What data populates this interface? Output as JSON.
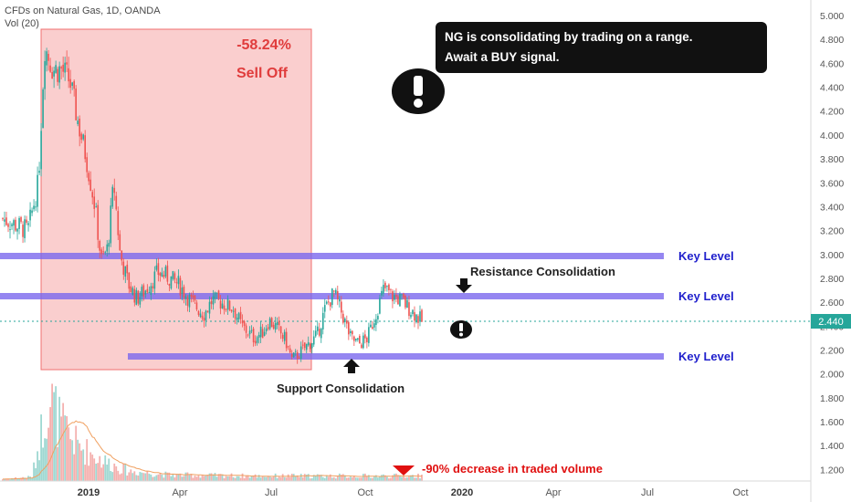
{
  "header": {
    "title": "CFDs on Natural Gas, 1D, OANDA",
    "vol_label": "Vol (20)"
  },
  "note": {
    "line1": "NG is consolidating by trading on a range.",
    "line2": "Await a BUY signal."
  },
  "sell_off": {
    "percent": "-58.24%",
    "label": "Sell Off"
  },
  "labels": {
    "resistance": "Resistance Consolidation",
    "support": "Support Consolidation",
    "volume_note": "-90% decrease in traded volume",
    "price_tag": "2.440"
  },
  "colors": {
    "up_candle": "#26a69a",
    "down_candle": "#ef5350",
    "key_level": "#7b68ee",
    "key_text": "#1f1fcc",
    "selloff_fill": "#f6a5a5",
    "selloff_text": "#e03c3c",
    "price_tag": "#26a69a",
    "volume_note": "#e01010"
  },
  "chart_data": {
    "type": "candlestick",
    "symbol": "Natural Gas CFD",
    "timeframe": "1D",
    "x_ticks": [
      "2019",
      "Apr",
      "Jul",
      "Oct",
      "2020",
      "Apr",
      "Jul",
      "Oct"
    ],
    "y_ticks": [
      "5.000",
      "4.800",
      "4.600",
      "4.400",
      "4.200",
      "4.000",
      "3.800",
      "3.600",
      "3.400",
      "3.200",
      "3.000",
      "2.800",
      "2.600",
      "2.400",
      "2.200",
      "2.000",
      "1.800",
      "1.600",
      "1.400",
      "1.200"
    ],
    "ylim": [
      1.1,
      5.08
    ],
    "last_price": 2.44,
    "key_levels": [
      {
        "label": "Key Level",
        "value": 2.995
      },
      {
        "label": "Key Level",
        "value": 2.66
      },
      {
        "label": "Key Level",
        "value": 2.15
      }
    ],
    "close_path": [
      {
        "t": 0,
        "close": 3.3
      },
      {
        "t": 0.03,
        "close": 3.25
      },
      {
        "t": 0.06,
        "close": 3.2
      },
      {
        "t": 0.085,
        "close": 3.6
      },
      {
        "t": 0.1,
        "close": 4.75
      },
      {
        "t": 0.12,
        "close": 4.55
      },
      {
        "t": 0.14,
        "close": 4.55
      },
      {
        "t": 0.16,
        "close": 4.45
      },
      {
        "t": 0.18,
        "close": 4.1
      },
      {
        "t": 0.2,
        "close": 3.8
      },
      {
        "t": 0.22,
        "close": 3.4
      },
      {
        "t": 0.235,
        "close": 2.95
      },
      {
        "t": 0.25,
        "close": 3.05
      },
      {
        "t": 0.265,
        "close": 3.6
      },
      {
        "t": 0.28,
        "close": 3.0
      },
      {
        "t": 0.3,
        "close": 2.75
      },
      {
        "t": 0.32,
        "close": 2.63
      },
      {
        "t": 0.34,
        "close": 2.7
      },
      {
        "t": 0.37,
        "close": 2.85
      },
      {
        "t": 0.39,
        "close": 2.82
      },
      {
        "t": 0.42,
        "close": 2.75
      },
      {
        "t": 0.45,
        "close": 2.6
      },
      {
        "t": 0.48,
        "close": 2.5
      },
      {
        "t": 0.5,
        "close": 2.62
      },
      {
        "t": 0.52,
        "close": 2.6
      },
      {
        "t": 0.55,
        "close": 2.55
      },
      {
        "t": 0.57,
        "close": 2.4
      },
      {
        "t": 0.6,
        "close": 2.3
      },
      {
        "t": 0.62,
        "close": 2.35
      },
      {
        "t": 0.635,
        "close": 2.45
      },
      {
        "t": 0.655,
        "close": 2.38
      },
      {
        "t": 0.675,
        "close": 2.28
      },
      {
        "t": 0.69,
        "close": 2.12
      },
      {
        "t": 0.71,
        "close": 2.18
      },
      {
        "t": 0.73,
        "close": 2.25
      },
      {
        "t": 0.75,
        "close": 2.32
      },
      {
        "t": 0.77,
        "close": 2.55
      },
      {
        "t": 0.79,
        "close": 2.68
      },
      {
        "t": 0.81,
        "close": 2.5
      },
      {
        "t": 0.83,
        "close": 2.3
      },
      {
        "t": 0.85,
        "close": 2.25
      },
      {
        "t": 0.87,
        "close": 2.3
      },
      {
        "t": 0.89,
        "close": 2.5
      },
      {
        "t": 0.91,
        "close": 2.72
      },
      {
        "t": 0.93,
        "close": 2.65
      },
      {
        "t": 0.95,
        "close": 2.62
      },
      {
        "t": 0.97,
        "close": 2.55
      },
      {
        "t": 1.0,
        "close": 2.44
      }
    ],
    "volume_profile": [
      {
        "t": 0,
        "v": 0.02
      },
      {
        "t": 0.07,
        "v": 0.04
      },
      {
        "t": 0.09,
        "v": 0.45
      },
      {
        "t": 0.11,
        "v": 0.85
      },
      {
        "t": 0.14,
        "v": 0.55
      },
      {
        "t": 0.18,
        "v": 0.35
      },
      {
        "t": 0.24,
        "v": 0.2
      },
      {
        "t": 0.3,
        "v": 0.1
      },
      {
        "t": 0.4,
        "v": 0.06
      },
      {
        "t": 0.6,
        "v": 0.05
      },
      {
        "t": 0.8,
        "v": 0.05
      },
      {
        "t": 1.0,
        "v": 0.05
      }
    ]
  }
}
